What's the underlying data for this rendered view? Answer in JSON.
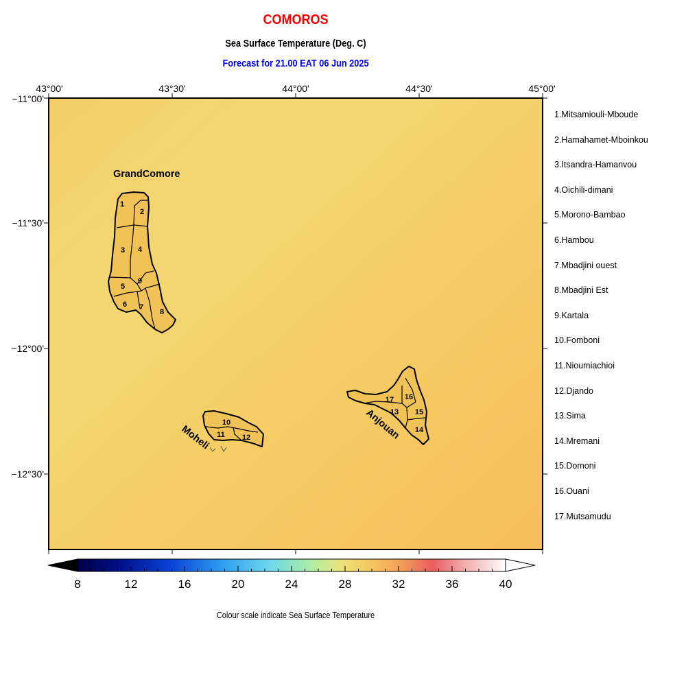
{
  "title": "COMOROS",
  "subtitle": "Sea Surface Temperature (Deg. C)",
  "forecast": "Forecast for  21.00 EAT 06 Jun 2025",
  "axes": {
    "lon_ticks": [
      "43°00'",
      "43°30'",
      "44°00'",
      "44°30'",
      "45°00'"
    ],
    "lat_ticks": [
      "−11°00'",
      "−11°30'",
      "−12°00'",
      "−12°30'"
    ]
  },
  "islands": {
    "grand_comore": "GrandComore",
    "moheli": "Moheli",
    "anjouan": "Anjouan"
  },
  "region_numbers": [
    "1",
    "2",
    "3",
    "4",
    "5",
    "6",
    "7",
    "8",
    "9",
    "10",
    "11",
    "12",
    "13",
    "14",
    "15",
    "16",
    "17"
  ],
  "legend": [
    "1.Mitsamiouli-Mboude",
    "2.Hamahamet-Mboinkou",
    "3.Itsandra-Hamanvou",
    "4.Oichili-dimani",
    "5.Morono-Bambao",
    "6.Hambou",
    "7.Mbadjini ouest",
    "8.Mbadjini Est",
    "9.Kartala",
    "10.Fomboni",
    "11.Nioumiachioi",
    "12.Djando",
    "13.Sima",
    "14.Mremani",
    "15.Domoni",
    "16.Ouani",
    "17.Mutsamudu"
  ],
  "colorbar": {
    "labels": [
      "8",
      "12",
      "16",
      "20",
      "24",
      "28",
      "32",
      "36",
      "40"
    ],
    "min": 8,
    "max": 40,
    "caption": "Colour scale indicate Sea Surface Temperature"
  },
  "colors": {
    "sea_light": "#f2d872",
    "sea_warm": "#f7c25a",
    "land": "#f1c256",
    "title": "#ff0000",
    "forecast": "#0000ff"
  }
}
